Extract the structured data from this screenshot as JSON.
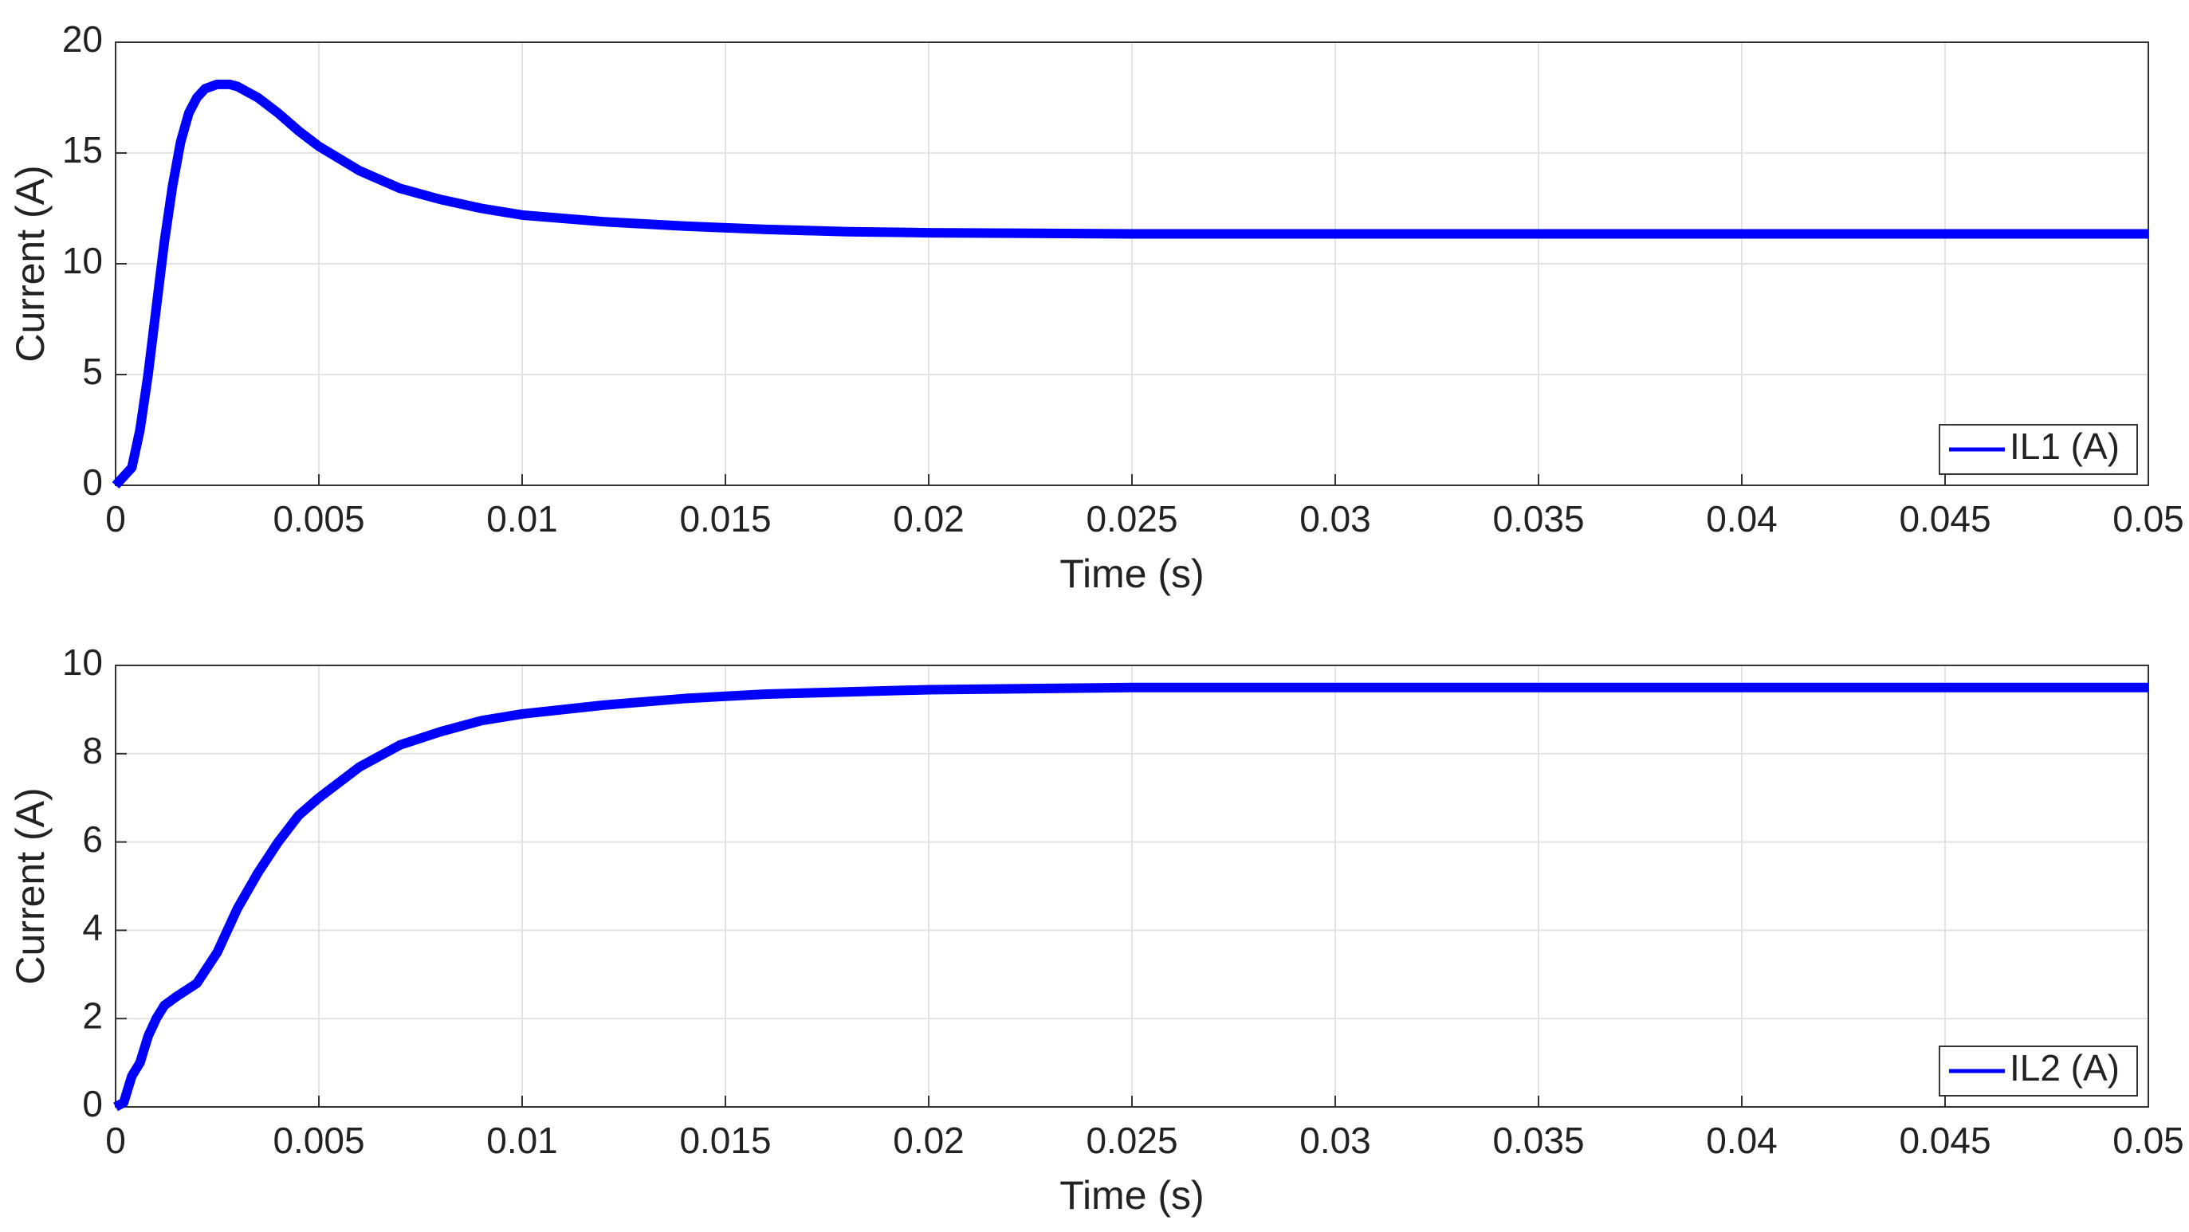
{
  "chart_data": [
    {
      "type": "line",
      "xlabel": "Time (s)",
      "ylabel": "Current (A)",
      "x": [
        0,
        0.0002,
        0.0004,
        0.0006,
        0.0008,
        0.001,
        0.0012,
        0.0014,
        0.0016,
        0.0018,
        0.002,
        0.0022,
        0.0025,
        0.0028,
        0.003,
        0.0035,
        0.004,
        0.0045,
        0.005,
        0.006,
        0.007,
        0.008,
        0.009,
        0.01,
        0.012,
        0.014,
        0.016,
        0.018,
        0.02,
        0.025,
        0.03,
        0.035,
        0.04,
        0.045,
        0.05
      ],
      "series": [
        {
          "name": "IL1 (A)",
          "color": "#0000ff",
          "values": [
            0,
            0.4,
            0.8,
            2.5,
            5,
            8,
            11,
            13.5,
            15.5,
            16.8,
            17.5,
            17.9,
            18.1,
            18.1,
            18,
            17.5,
            16.8,
            16,
            15.3,
            14.2,
            13.4,
            12.9,
            12.5,
            12.2,
            11.9,
            11.7,
            11.55,
            11.45,
            11.4,
            11.35,
            11.35,
            11.35,
            11.35,
            11.35,
            11.35
          ]
        }
      ],
      "xlim": [
        0,
        0.05
      ],
      "xticks": [
        0,
        0.005,
        0.01,
        0.015,
        0.02,
        0.025,
        0.03,
        0.035,
        0.04,
        0.045,
        0.05
      ],
      "ylim": [
        0,
        20
      ],
      "yticks": [
        0,
        5,
        10,
        15,
        20
      ],
      "grid": true,
      "legend": "lower right"
    },
    {
      "type": "line",
      "xlabel": "Time (s)",
      "ylabel": "Current (A)",
      "x": [
        0,
        0.0002,
        0.0004,
        0.0006,
        0.0008,
        0.001,
        0.0012,
        0.0015,
        0.002,
        0.0025,
        0.003,
        0.0035,
        0.004,
        0.0045,
        0.005,
        0.006,
        0.007,
        0.008,
        0.009,
        0.01,
        0.012,
        0.014,
        0.016,
        0.018,
        0.02,
        0.025,
        0.03,
        0.035,
        0.04,
        0.045,
        0.05
      ],
      "series": [
        {
          "name": "IL2 (A)",
          "color": "#0000ff",
          "values": [
            0,
            0.1,
            0.7,
            1.0,
            1.6,
            2.0,
            2.3,
            2.5,
            2.8,
            3.5,
            4.5,
            5.3,
            6.0,
            6.6,
            7.0,
            7.7,
            8.2,
            8.5,
            8.75,
            8.9,
            9.1,
            9.25,
            9.35,
            9.4,
            9.45,
            9.5,
            9.5,
            9.5,
            9.5,
            9.5,
            9.5
          ]
        }
      ],
      "xlim": [
        0,
        0.05
      ],
      "xticks": [
        0,
        0.005,
        0.01,
        0.015,
        0.02,
        0.025,
        0.03,
        0.035,
        0.04,
        0.045,
        0.05
      ],
      "ylim": [
        0,
        10
      ],
      "yticks": [
        0,
        2,
        4,
        6,
        8,
        10
      ],
      "grid": true,
      "legend": "lower right"
    }
  ]
}
